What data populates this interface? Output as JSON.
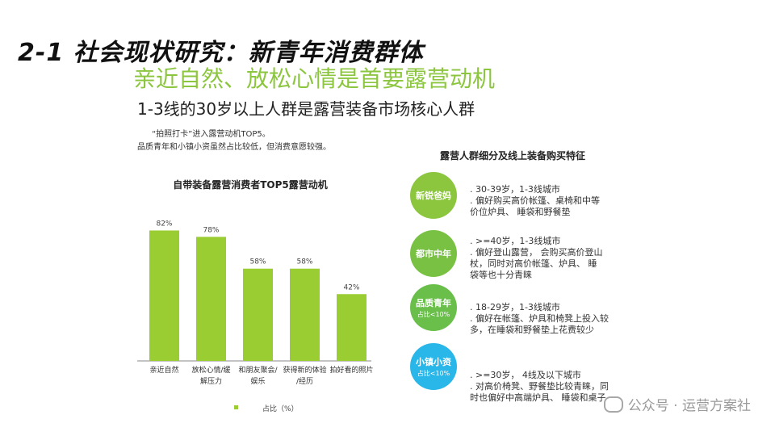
{
  "header": {
    "title": "2-1 社会现状研究：新青年消费群体",
    "subtitle_green": "亲近自然、放松心情是首要露营动机",
    "subtitle_dark": "1-3线的30岁以上人群是露营装备市场核心人群"
  },
  "notes": {
    "line1": "“拍照打卡”进入露营动机TOP5。",
    "line2": "品质青年和小镇小资虽然占比较低，但消费意愿较强。"
  },
  "chart_data": {
    "type": "bar",
    "title": "自带装备露营消费者TOP5露营动机",
    "categories": [
      "亲近自然",
      "放松心情/缓解压力",
      "和朋友聚会/娱乐",
      "获得新的体验/经历",
      "拍好看的照片"
    ],
    "category_lines": [
      [
        "亲近自然"
      ],
      [
        "放松心情/缓",
        "解压力"
      ],
      [
        "和朋友聚会/",
        "娱乐"
      ],
      [
        "获得新的体验",
        "/经历"
      ],
      [
        "拍好看的照片"
      ]
    ],
    "values": [
      82,
      78,
      58,
      58,
      42
    ],
    "value_labels": [
      "82%",
      "78%",
      "58%",
      "58%",
      "42%"
    ],
    "ylim": [
      0,
      100
    ],
    "legend": "占比（%）",
    "legend_position": "bottom",
    "bar_color": "#9acd32",
    "grid": false
  },
  "segments": {
    "title": "露营人群细分及线上装备购买特征",
    "items": [
      {
        "name": "新锐爸妈",
        "share": "",
        "color": "#8cc63f",
        "lines": [
          ". 30-39岁，1-3线城市",
          ". 偏好购买高价帐篷、桌椅和中等",
          "  价位炉具、 睡袋和野餐垫"
        ]
      },
      {
        "name": "都市中年",
        "share": "",
        "color": "#79c143",
        "lines": [
          ". >=40岁，1-3线城市",
          ". 偏好登山露营， 会购买高价登山",
          "  杖，同时对高价帐篷、炉具、 睡",
          "  袋等也十分青睐"
        ]
      },
      {
        "name": "品质青年",
        "share": "占比<10%",
        "color": "#6abf4b",
        "lines": [
          ". 18-29岁，1-3线城市",
          ". 偏好在帐篷、炉具和椅凳上投入较",
          "  多，在睡袋和野餐垫上花费较少"
        ]
      },
      {
        "name": "小镇小资",
        "share": "占比<10%",
        "color": "#29b6e8",
        "lines": [
          ". >=30岁， 4线及以下城市",
          ". 对高价椅凳、野餐垫比较青睐，同",
          "  时也偏好中高端炉具、 睡袋和桌子"
        ]
      }
    ]
  },
  "watermark": "公众号 · 运营方案社"
}
